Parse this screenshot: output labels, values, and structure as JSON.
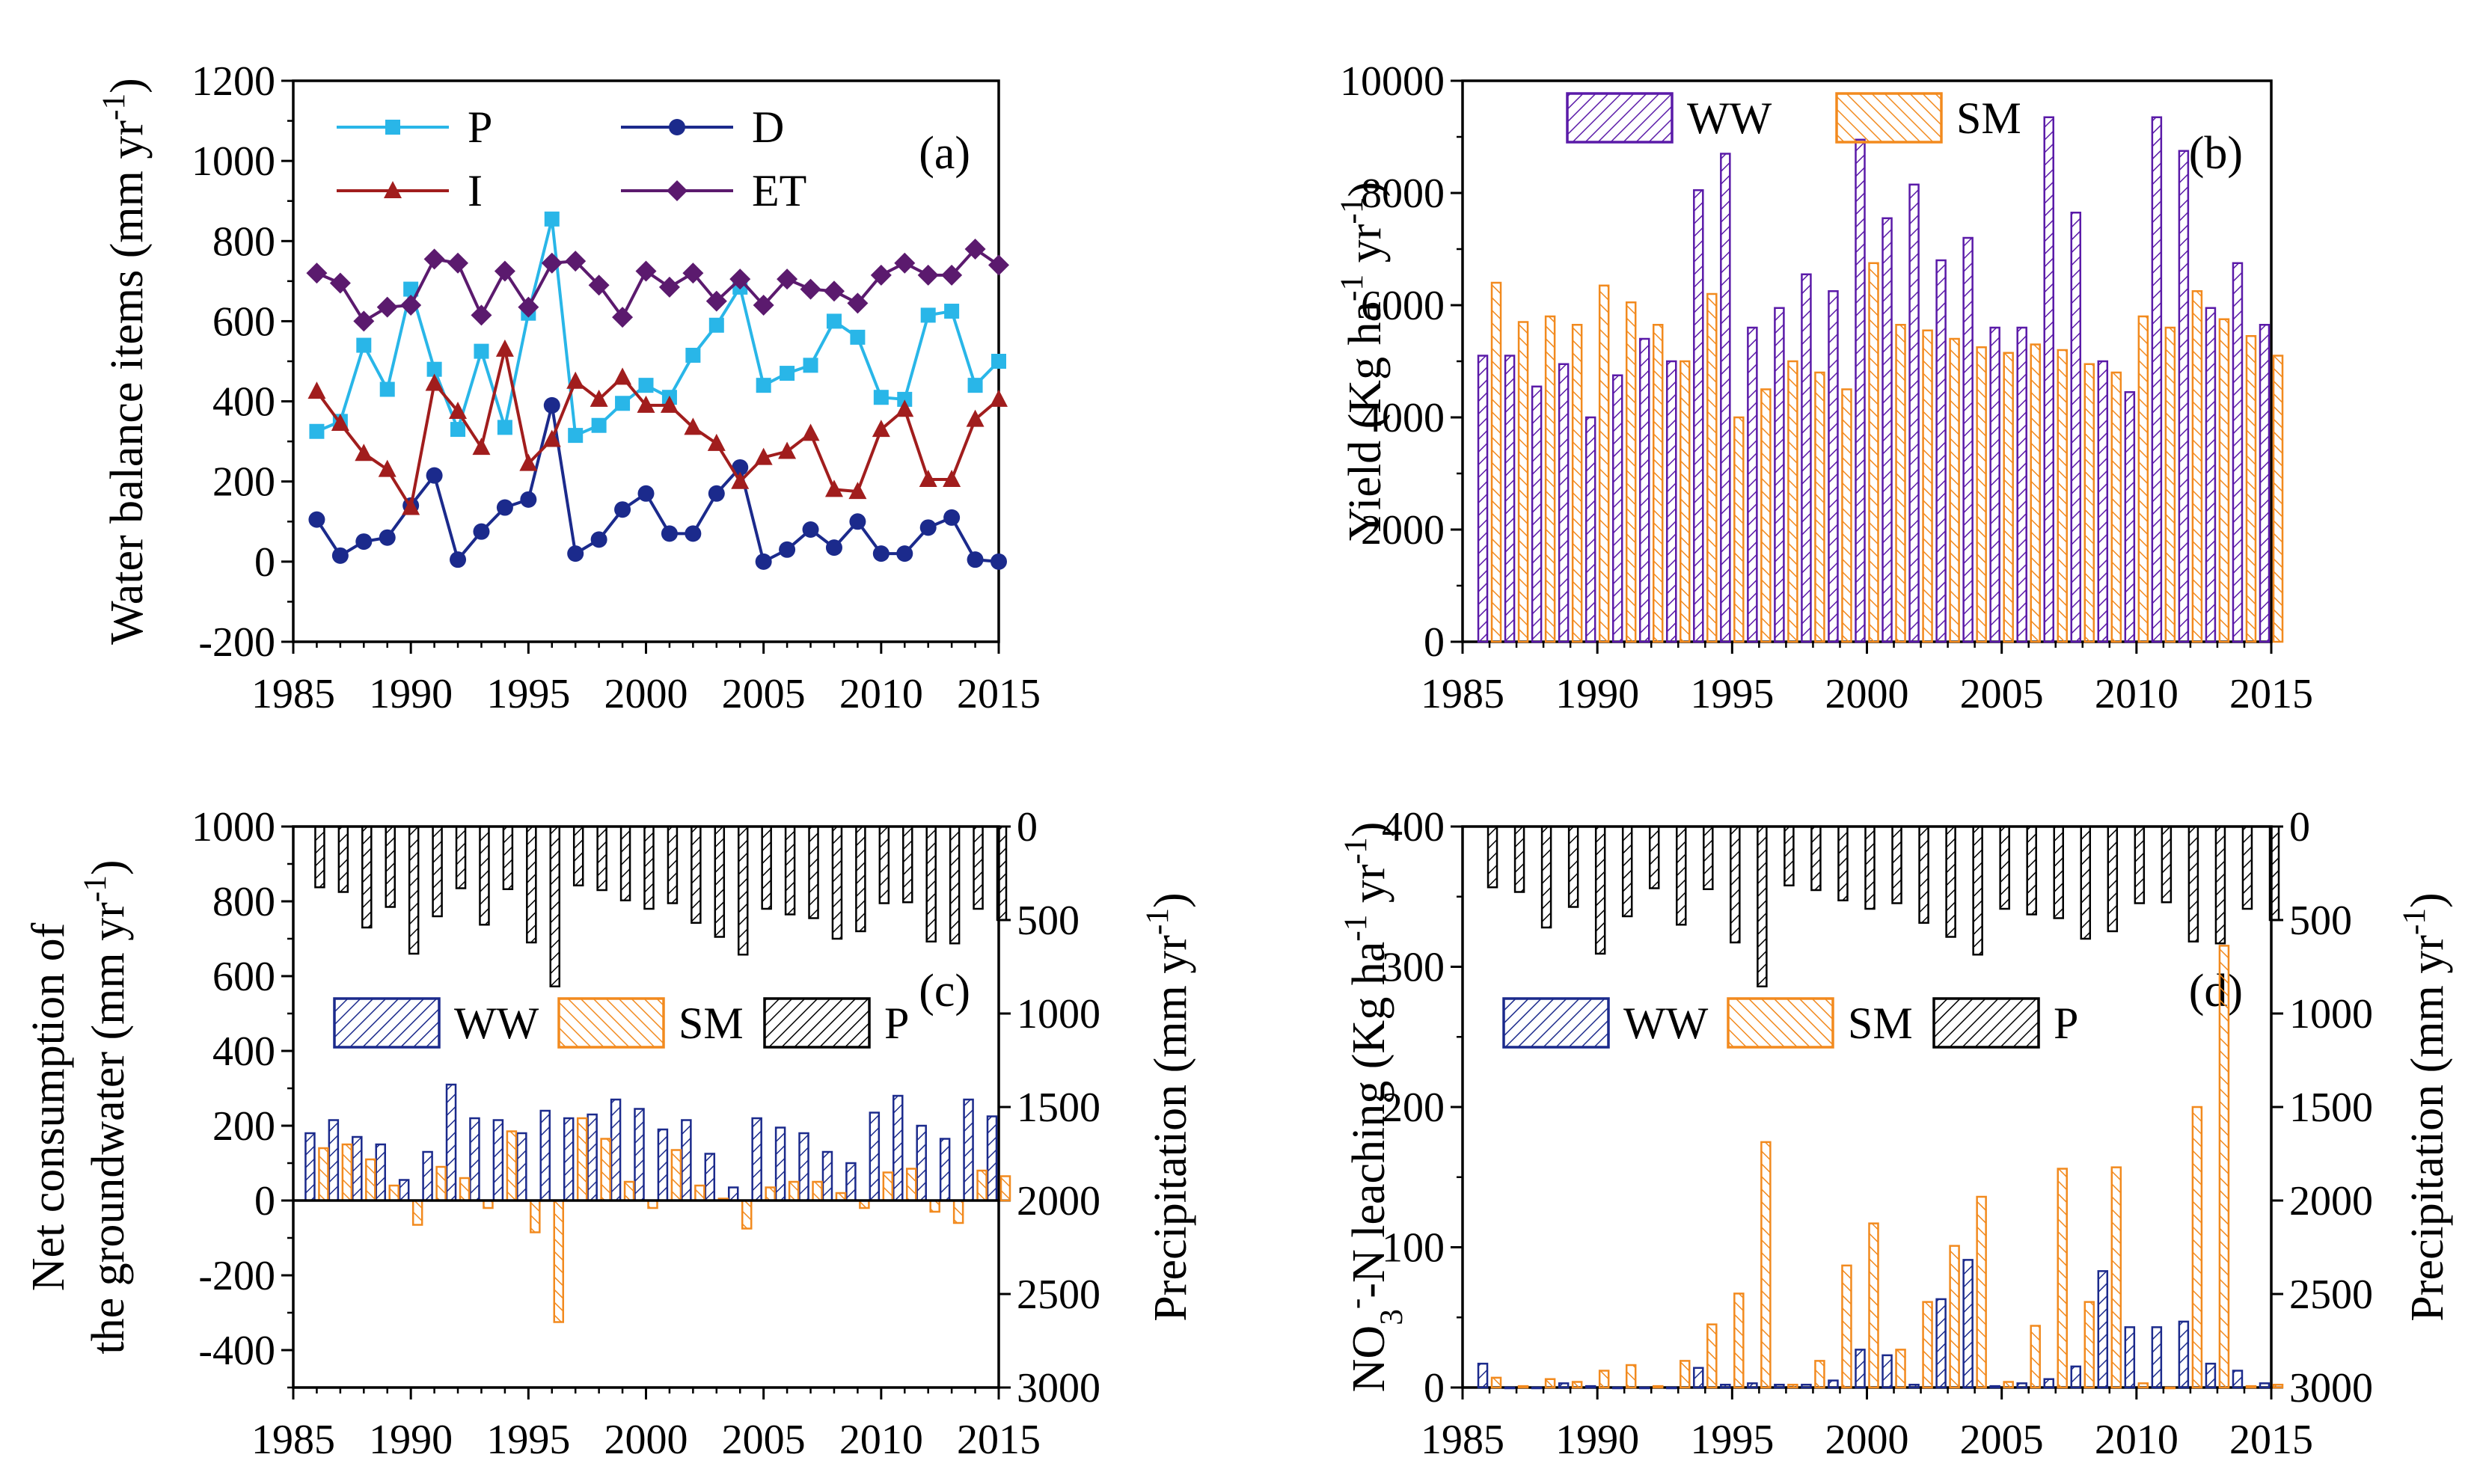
{
  "chart_data": [
    {
      "panel": "a",
      "type": "line",
      "panel_label": "(a)",
      "ylabel": "Water balance items (mm yr",
      "ylabel_sup": "-1",
      "ylabel_close": ")",
      "xlim": [
        1985,
        2015
      ],
      "ylim": [
        -200,
        1200
      ],
      "xticks": [
        "1985",
        "1990",
        "1995",
        "2000",
        "2005",
        "2010",
        "2015"
      ],
      "yticks": [
        "-200",
        "0",
        "200",
        "400",
        "600",
        "800",
        "1000",
        "1200"
      ],
      "x": [
        1986,
        1987,
        1988,
        1989,
        1990,
        1991,
        1992,
        1993,
        1994,
        1995,
        1996,
        1997,
        1998,
        1999,
        2000,
        2001,
        2002,
        2003,
        2004,
        2005,
        2006,
        2007,
        2008,
        2009,
        2010,
        2011,
        2012,
        2013,
        2014,
        2015
      ],
      "series": [
        {
          "name": "P",
          "color": "#29b6e8",
          "marker": "square",
          "values": [
            325,
            350,
            540,
            430,
            680,
            480,
            330,
            525,
            335,
            620,
            855,
            315,
            340,
            395,
            440,
            410,
            515,
            590,
            685,
            440,
            470,
            490,
            600,
            560,
            410,
            405,
            615,
            625,
            440,
            500
          ]
        },
        {
          "name": "D",
          "color": "#1b2a8c",
          "marker": "circle",
          "values": [
            105,
            15,
            50,
            60,
            140,
            215,
            5,
            75,
            135,
            155,
            390,
            20,
            55,
            130,
            170,
            70,
            70,
            170,
            235,
            0,
            30,
            80,
            35,
            100,
            20,
            20,
            85,
            110,
            5,
            0
          ]
        },
        {
          "name": "I",
          "color": "#a11d1d",
          "marker": "triangle",
          "values": [
            425,
            345,
            270,
            230,
            135,
            445,
            375,
            285,
            530,
            245,
            305,
            450,
            405,
            460,
            390,
            390,
            335,
            295,
            200,
            260,
            275,
            320,
            180,
            175,
            330,
            380,
            205,
            205,
            355,
            405
          ]
        },
        {
          "name": "ET",
          "color": "#5b1a6e",
          "marker": "diamond",
          "values": [
            720,
            695,
            600,
            635,
            640,
            755,
            745,
            615,
            725,
            635,
            745,
            750,
            690,
            610,
            725,
            685,
            720,
            650,
            705,
            640,
            705,
            680,
            675,
            645,
            715,
            745,
            715,
            715,
            780,
            740
          ]
        }
      ]
    },
    {
      "panel": "b",
      "type": "bar",
      "panel_label": "(b)",
      "ylabel": "Yield (Kg ha",
      "ylabel_sup1": "-1",
      "ylabel_mid": " yr",
      "ylabel_sup2": "-1",
      "ylabel_close": ")",
      "xlim": [
        1985,
        2015
      ],
      "ylim": [
        0,
        10000
      ],
      "xticks": [
        "1985",
        "1990",
        "1995",
        "2000",
        "2005",
        "2010",
        "2015"
      ],
      "yticks": [
        "0",
        "2000",
        "4000",
        "6000",
        "8000",
        "10000"
      ],
      "x": [
        1986,
        1987,
        1988,
        1989,
        1990,
        1991,
        1992,
        1993,
        1994,
        1995,
        1996,
        1997,
        1998,
        1999,
        2000,
        2001,
        2002,
        2003,
        2004,
        2005,
        2006,
        2007,
        2008,
        2009,
        2010,
        2011,
        2012,
        2013,
        2014,
        2015
      ],
      "series": [
        {
          "name": "WW",
          "color": "#5a1aa8",
          "values": [
            5100,
            5100,
            4550,
            4950,
            4000,
            4750,
            5400,
            5000,
            8050,
            8700,
            5600,
            5950,
            6550,
            6250,
            8950,
            7550,
            8150,
            6800,
            7200,
            5600,
            5600,
            9350,
            7650,
            5000,
            4450,
            9350,
            8750,
            5950,
            6750,
            5650
          ]
        },
        {
          "name": "SM",
          "color": "#f28a1e",
          "values": [
            6400,
            5700,
            5800,
            5650,
            6350,
            6050,
            5650,
            5000,
            6200,
            4000,
            4500,
            5000,
            4800,
            4500,
            6750,
            5650,
            5550,
            5400,
            5250,
            5150,
            5300,
            5200,
            4950,
            4800,
            5800,
            5600,
            6250,
            5750,
            5450,
            5100
          ]
        }
      ]
    },
    {
      "panel": "c",
      "type": "bar",
      "panel_label": "(c)",
      "ylabel_line1": "Net consumption of",
      "ylabel_line2": "the groundwater (mm yr",
      "ylabel_sup": "-1",
      "ylabel_close": ")",
      "y2label": "Precipitation (mm yr",
      "y2label_sup": "-1",
      "y2label_close": ")",
      "xlim": [
        1985,
        2015
      ],
      "ylim": [
        -500,
        1000
      ],
      "y2lim": [
        3000,
        0
      ],
      "xticks": [
        "1985",
        "1990",
        "1995",
        "2000",
        "2005",
        "2010",
        "2015"
      ],
      "yticks": [
        "-400",
        "-200",
        "0",
        "200",
        "400",
        "600",
        "800",
        "1000"
      ],
      "y2ticks": [
        "0",
        "500",
        "1000",
        "1500",
        "2000",
        "2500",
        "3000"
      ],
      "x": [
        1986,
        1987,
        1988,
        1989,
        1990,
        1991,
        1992,
        1993,
        1994,
        1995,
        1996,
        1997,
        1998,
        1999,
        2000,
        2001,
        2002,
        2003,
        2004,
        2005,
        2006,
        2007,
        2008,
        2009,
        2010,
        2011,
        2012,
        2013,
        2014,
        2015
      ],
      "series": [
        {
          "name": "WW",
          "color": "#1b2a8c",
          "values": [
            180,
            215,
            170,
            150,
            55,
            130,
            310,
            220,
            215,
            180,
            240,
            220,
            230,
            270,
            245,
            190,
            215,
            125,
            35,
            220,
            195,
            180,
            130,
            100,
            235,
            280,
            200,
            165,
            270,
            225
          ]
        },
        {
          "name": "SM",
          "color": "#f28a1e",
          "values": [
            140,
            150,
            110,
            40,
            -65,
            90,
            60,
            -20,
            185,
            -85,
            -325,
            220,
            165,
            50,
            -20,
            135,
            40,
            5,
            -75,
            35,
            50,
            50,
            20,
            -20,
            75,
            85,
            -30,
            -60,
            80,
            65
          ]
        },
        {
          "name": "P",
          "color": "#000000",
          "axis": "right",
          "values": [
            325,
            350,
            540,
            430,
            680,
            480,
            330,
            525,
            335,
            620,
            855,
            315,
            340,
            395,
            440,
            410,
            515,
            590,
            685,
            440,
            470,
            490,
            600,
            560,
            410,
            405,
            615,
            625,
            440,
            500
          ]
        }
      ]
    },
    {
      "panel": "d",
      "type": "bar",
      "panel_label": "(d)",
      "ylabel_pre": "NO",
      "ylabel_sub": "3",
      "ylabel_supm": "-",
      "ylabel_mid": "-N leaching (Kg ha",
      "ylabel_sup1": "-1",
      "ylabel_yr": " yr",
      "ylabel_sup2": "-1",
      "ylabel_close": ")",
      "y2label": "Precipitation (mm yr",
      "y2label_sup": "-1",
      "y2label_close": ")",
      "xlim": [
        1985,
        2015
      ],
      "ylim": [
        0,
        400
      ],
      "y2lim": [
        3000,
        0
      ],
      "xticks": [
        "1985",
        "1990",
        "1995",
        "2000",
        "2005",
        "2010",
        "2015"
      ],
      "yticks": [
        "0",
        "100",
        "200",
        "300",
        "400"
      ],
      "y2ticks": [
        "0",
        "500",
        "1000",
        "1500",
        "2000",
        "2500",
        "3000"
      ],
      "x": [
        1986,
        1987,
        1988,
        1989,
        1990,
        1991,
        1992,
        1993,
        1994,
        1995,
        1996,
        1997,
        1998,
        1999,
        2000,
        2001,
        2002,
        2003,
        2004,
        2005,
        2006,
        2007,
        2008,
        2009,
        2010,
        2011,
        2012,
        2013,
        2014,
        2015
      ],
      "series": [
        {
          "name": "WW",
          "color": "#1b2a8c",
          "values": [
            17,
            0,
            0,
            3,
            1,
            0,
            0,
            0,
            14,
            2,
            3,
            2,
            2,
            5,
            27,
            23,
            2,
            63,
            91,
            1,
            3,
            6,
            15,
            83,
            43,
            43,
            47,
            17,
            12,
            3
          ]
        },
        {
          "name": "SM",
          "color": "#f28a1e",
          "values": [
            7,
            1,
            6,
            4,
            12,
            16,
            1,
            19,
            45,
            67,
            175,
            2,
            19,
            87,
            117,
            27,
            61,
            101,
            136,
            4,
            44,
            156,
            61,
            157,
            3,
            0,
            200,
            315,
            1,
            2
          ]
        },
        {
          "name": "P",
          "color": "#000000",
          "axis": "right",
          "values": [
            325,
            350,
            540,
            430,
            680,
            480,
            330,
            525,
            335,
            620,
            855,
            315,
            340,
            395,
            440,
            410,
            515,
            590,
            685,
            440,
            470,
            490,
            600,
            560,
            410,
            405,
            615,
            625,
            440,
            500
          ]
        }
      ]
    }
  ]
}
